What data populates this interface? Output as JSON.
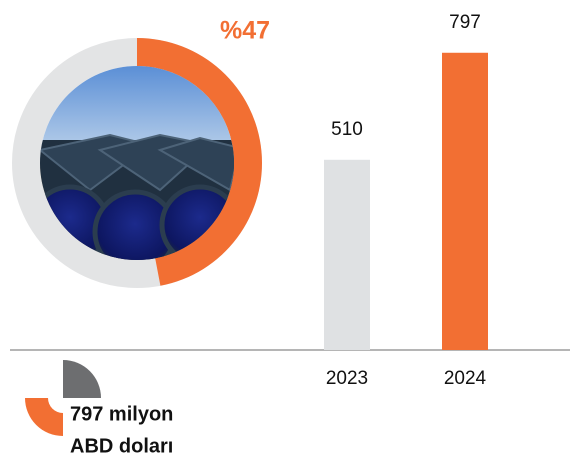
{
  "chart_data": [
    {
      "type": "donut",
      "values": [
        47
      ],
      "value_labels": [
        "%47"
      ],
      "color": "#f26f33",
      "track_color": "#e3e4e5"
    },
    {
      "type": "bar",
      "categories": [
        "2023",
        "2024"
      ],
      "values": [
        510,
        797
      ],
      "colors": [
        "#dfe1e3",
        "#f26f33"
      ],
      "ylim": [
        0,
        850
      ]
    }
  ],
  "caption": {
    "lines": [
      "797 milyon",
      "ABD doları"
    ]
  }
}
